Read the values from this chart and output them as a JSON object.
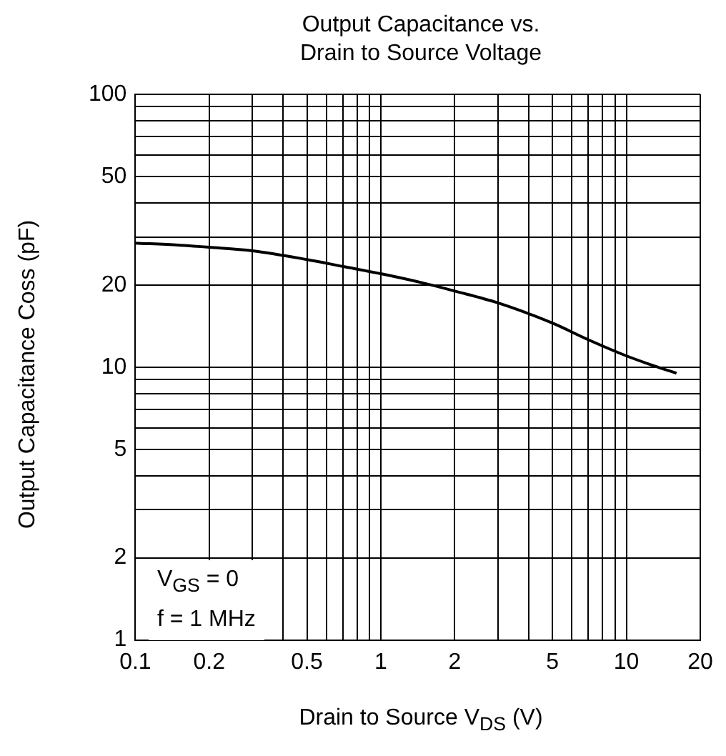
{
  "chart_data": {
    "type": "line",
    "title": "Output Capacitance vs.\nDrain to Source Voltage",
    "xlabel": "Drain to Source  V$_{DS}$  (V)",
    "ylabel": "Output Capacitance  Coss  (pF)",
    "annotations": [
      "V$_{GS}$  = 0",
      "f = 1 MHz"
    ],
    "x": [
      0.1,
      0.15,
      0.2,
      0.3,
      0.5,
      0.7,
      1,
      1.5,
      2,
      3,
      5,
      7,
      10,
      13,
      16
    ],
    "series": [
      {
        "color": "#000000",
        "values": [
          28.5,
          28,
          27.5,
          26.7,
          24.8,
          23.4,
          22,
          20.3,
          19,
          17.2,
          14.5,
          12.6,
          11,
          10.1,
          9.5
        ]
      }
    ],
    "log": "xy",
    "xlim": [
      0.1,
      20
    ],
    "ylim": [
      1,
      100
    ],
    "xticks": [
      0.1,
      0.2,
      {
        "value": 0.3,
        "label": null
      },
      {
        "value": 0.4,
        "label": null
      },
      0.5,
      {
        "value": 0.6,
        "label": null
      },
      {
        "value": 0.7,
        "label": null
      },
      {
        "value": 0.8,
        "label": null
      },
      {
        "value": 0.9,
        "label": null
      },
      1,
      2,
      {
        "value": 3,
        "label": null
      },
      {
        "value": 4,
        "label": null
      },
      5,
      {
        "value": 6,
        "label": null
      },
      {
        "value": 7,
        "label": null
      },
      {
        "value": 8,
        "label": null
      },
      {
        "value": 9,
        "label": null
      },
      10,
      20
    ],
    "yticks": [
      1,
      2,
      {
        "value": 3,
        "label": null
      },
      {
        "value": 4,
        "label": null
      },
      5,
      {
        "value": 6,
        "label": null
      },
      {
        "value": 7,
        "label": null
      },
      {
        "value": 8,
        "label": null
      },
      {
        "value": 9,
        "label": null
      },
      10,
      20,
      {
        "value": 30,
        "label": null
      },
      {
        "value": 40,
        "label": null
      },
      50,
      {
        "value": 60,
        "label": null
      },
      {
        "value": 70,
        "label": null
      },
      {
        "value": 80,
        "label": null
      },
      {
        "value": 90,
        "label": null
      },
      100
    ],
    "grid": true,
    "legend": false,
    "marker": "none",
    "line_style": "solid"
  }
}
